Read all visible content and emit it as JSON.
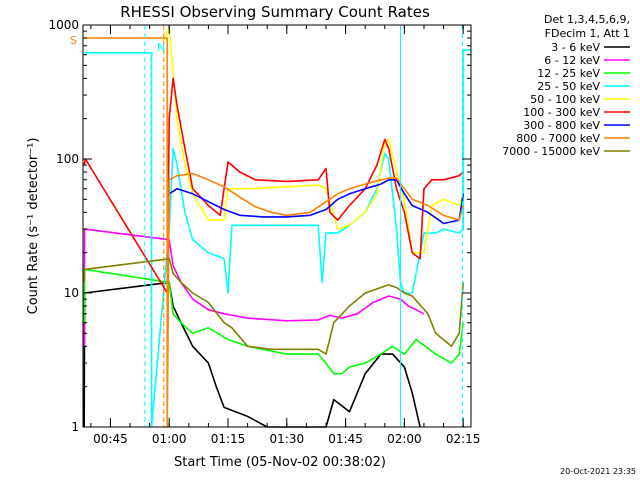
{
  "chart_data": {
    "type": "line",
    "title": "RHESSI Observing Summary Count Rates",
    "xlabel": "Start Time (05-Nov-02 00:38:02)",
    "ylabel": "Count Rate (s⁻¹ detector⁻¹)",
    "y_scale": "log",
    "ylim": [
      1,
      1000
    ],
    "xlim_minutes_after_00:00": [
      38.0,
      137.0
    ],
    "x_ticks": [
      {
        "t": 45,
        "label": "00:45"
      },
      {
        "t": 60,
        "label": "01:00"
      },
      {
        "t": 75,
        "label": "01:15"
      },
      {
        "t": 90,
        "label": "01:30"
      },
      {
        "t": 105,
        "label": "01:45"
      },
      {
        "t": 120,
        "label": "02:00"
      },
      {
        "t": 135,
        "label": "02:15"
      }
    ],
    "y_ticks": [
      {
        "v": 1,
        "label": "1"
      },
      {
        "v": 10,
        "label": "10"
      },
      {
        "v": 100,
        "label": "100"
      },
      {
        "v": 1000,
        "label": "1000"
      }
    ],
    "legend_header": [
      "Det 1,3,4,5,6,9,",
      "FDecim 1, Att 1"
    ],
    "legend_position": "right",
    "series": [
      {
        "name": "3 - 6 keV",
        "color": "#000000",
        "points": [
          [
            38.3,
            1
          ],
          [
            38.4,
            10
          ],
          [
            60,
            12
          ],
          [
            61,
            8
          ],
          [
            63,
            6
          ],
          [
            66,
            4
          ],
          [
            70,
            3
          ],
          [
            72,
            2
          ],
          [
            74,
            1.4
          ],
          [
            80,
            1.2
          ],
          [
            85,
            1
          ],
          [
            100,
            1
          ],
          [
            102,
            1.6
          ],
          [
            106,
            1.3
          ],
          [
            110,
            2.5
          ],
          [
            114,
            3.5
          ],
          [
            117,
            3.5
          ],
          [
            120,
            2.8
          ],
          [
            122,
            1.8
          ],
          [
            124,
            1
          ]
        ]
      },
      {
        "name": "6 - 12 keV",
        "color": "#ff00ff",
        "points": [
          [
            38.3,
            4
          ],
          [
            38.4,
            30
          ],
          [
            60,
            25
          ],
          [
            61,
            16
          ],
          [
            63,
            12
          ],
          [
            66,
            9
          ],
          [
            70,
            7.5
          ],
          [
            74,
            7
          ],
          [
            80,
            6.5
          ],
          [
            90,
            6.2
          ],
          [
            98,
            6.3
          ],
          [
            101,
            6.8
          ],
          [
            104,
            6.5
          ],
          [
            108,
            7
          ],
          [
            112,
            8.5
          ],
          [
            116,
            9.5
          ],
          [
            119,
            9
          ],
          [
            121,
            8
          ],
          [
            123,
            7.5
          ],
          [
            125,
            7
          ]
        ]
      },
      {
        "name": "12 - 25 keV",
        "color": "#00ff00",
        "points": [
          [
            38.3,
            6
          ],
          [
            38.4,
            15
          ],
          [
            60,
            12
          ],
          [
            61,
            7
          ],
          [
            63,
            6
          ],
          [
            66,
            5
          ],
          [
            70,
            5.5
          ],
          [
            75,
            4.5
          ],
          [
            80,
            4
          ],
          [
            90,
            3.5
          ],
          [
            98,
            3.5
          ],
          [
            100,
            3
          ],
          [
            102,
            2.5
          ],
          [
            104,
            2.5
          ],
          [
            106,
            2.8
          ],
          [
            110,
            3
          ],
          [
            114,
            3.5
          ],
          [
            117,
            4
          ],
          [
            120,
            3.5
          ],
          [
            123,
            4.5
          ],
          [
            128,
            3.5
          ],
          [
            132,
            3
          ],
          [
            134,
            3.5
          ],
          [
            135,
            6
          ]
        ]
      },
      {
        "name": "25 - 50 keV",
        "color": "#00ffff",
        "points": [
          [
            38.3,
            620
          ],
          [
            55.5,
            620
          ],
          [
            55.5,
            1
          ],
          [
            60,
            30
          ],
          [
            61,
            120
          ],
          [
            62,
            90
          ],
          [
            64,
            40
          ],
          [
            66,
            25
          ],
          [
            70,
            20
          ],
          [
            72,
            19
          ],
          [
            74,
            18
          ],
          [
            75,
            10
          ],
          [
            76,
            32
          ],
          [
            80,
            32
          ],
          [
            90,
            32
          ],
          [
            98,
            32
          ],
          [
            99,
            12
          ],
          [
            100,
            28
          ],
          [
            103,
            28
          ],
          [
            106,
            32
          ],
          [
            110,
            40
          ],
          [
            113,
            60
          ],
          [
            115,
            110
          ],
          [
            116,
            100
          ],
          [
            118,
            30
          ],
          [
            119,
            12
          ],
          [
            120,
            10
          ],
          [
            122,
            10
          ],
          [
            125,
            28
          ],
          [
            128,
            28
          ],
          [
            130,
            30
          ],
          [
            134,
            28
          ],
          [
            135,
            30
          ],
          [
            135,
            650
          ],
          [
            137,
            650
          ]
        ]
      },
      {
        "name": "50 - 100 keV",
        "color": "#ffff00",
        "points": [
          [
            58.5,
            750
          ],
          [
            60,
            950
          ],
          [
            62,
            200
          ],
          [
            64,
            90
          ],
          [
            66,
            55
          ],
          [
            70,
            35
          ],
          [
            74,
            35
          ],
          [
            75,
            60
          ],
          [
            80,
            60
          ],
          [
            90,
            62
          ],
          [
            98,
            64
          ],
          [
            100,
            60
          ],
          [
            103,
            30
          ],
          [
            106,
            32
          ],
          [
            110,
            40
          ],
          [
            113,
            55
          ],
          [
            115,
            130
          ],
          [
            116,
            140
          ],
          [
            118,
            80
          ],
          [
            120,
            50
          ],
          [
            122,
            20
          ],
          [
            125,
            20
          ],
          [
            127,
            45
          ],
          [
            130,
            50
          ],
          [
            134,
            45
          ],
          [
            135,
            55
          ]
        ]
      },
      {
        "name": "100 - 300 keV",
        "color": "#ff0000",
        "points": [
          [
            38.3,
            90
          ],
          [
            38.6,
            100
          ],
          [
            59.5,
            10
          ],
          [
            60,
            200
          ],
          [
            61,
            400
          ],
          [
            62,
            250
          ],
          [
            64,
            120
          ],
          [
            66,
            60
          ],
          [
            70,
            45
          ],
          [
            73,
            38
          ],
          [
            75,
            95
          ],
          [
            78,
            80
          ],
          [
            82,
            70
          ],
          [
            90,
            68
          ],
          [
            98,
            70
          ],
          [
            100,
            85
          ],
          [
            101,
            40
          ],
          [
            103,
            35
          ],
          [
            106,
            45
          ],
          [
            110,
            60
          ],
          [
            113,
            90
          ],
          [
            115,
            140
          ],
          [
            116,
            120
          ],
          [
            118,
            60
          ],
          [
            120,
            40
          ],
          [
            122,
            20
          ],
          [
            124,
            18
          ],
          [
            125,
            60
          ],
          [
            127,
            70
          ],
          [
            130,
            70
          ],
          [
            134,
            75
          ],
          [
            135,
            80
          ]
        ]
      },
      {
        "name": "300 - 800 keV",
        "color": "#0000ff",
        "points": [
          [
            60,
            55
          ],
          [
            62,
            60
          ],
          [
            66,
            55
          ],
          [
            70,
            48
          ],
          [
            74,
            42
          ],
          [
            78,
            38
          ],
          [
            84,
            37
          ],
          [
            90,
            37
          ],
          [
            96,
            38
          ],
          [
            100,
            42
          ],
          [
            103,
            50
          ],
          [
            106,
            55
          ],
          [
            110,
            60
          ],
          [
            114,
            65
          ],
          [
            116,
            70
          ],
          [
            118,
            70
          ],
          [
            120,
            55
          ],
          [
            122,
            45
          ],
          [
            126,
            40
          ],
          [
            130,
            33
          ],
          [
            134,
            35
          ],
          [
            135,
            55
          ]
        ]
      },
      {
        "name": "800 - 7000 keV",
        "color": "#ff8000",
        "points": [
          [
            38.3,
            800
          ],
          [
            59.5,
            800
          ],
          [
            59.5,
            1
          ],
          [
            60,
            70
          ],
          [
            62,
            75
          ],
          [
            66,
            78
          ],
          [
            70,
            70
          ],
          [
            74,
            62
          ],
          [
            78,
            52
          ],
          [
            82,
            44
          ],
          [
            86,
            40
          ],
          [
            90,
            38
          ],
          [
            96,
            40
          ],
          [
            100,
            48
          ],
          [
            103,
            55
          ],
          [
            106,
            60
          ],
          [
            110,
            65
          ],
          [
            114,
            70
          ],
          [
            116,
            72
          ],
          [
            118,
            72
          ],
          [
            120,
            60
          ],
          [
            122,
            50
          ],
          [
            126,
            45
          ],
          [
            130,
            38
          ],
          [
            134,
            35
          ],
          [
            135,
            45
          ]
        ]
      },
      {
        "name": "7000 - 15000 keV",
        "color": "#808000",
        "points": [
          [
            38.3,
            12
          ],
          [
            38.4,
            15
          ],
          [
            60,
            18
          ],
          [
            61,
            14
          ],
          [
            63,
            12
          ],
          [
            66,
            10
          ],
          [
            70,
            8.5
          ],
          [
            74,
            6
          ],
          [
            76,
            5.5
          ],
          [
            80,
            4
          ],
          [
            86,
            3.8
          ],
          [
            94,
            3.8
          ],
          [
            98,
            3.8
          ],
          [
            100,
            3.5
          ],
          [
            102,
            6
          ],
          [
            106,
            8
          ],
          [
            110,
            10
          ],
          [
            114,
            11
          ],
          [
            116,
            11.5
          ],
          [
            118,
            11
          ],
          [
            120,
            10
          ],
          [
            122,
            9.5
          ],
          [
            126,
            7
          ],
          [
            128,
            5
          ],
          [
            132,
            4
          ],
          [
            134,
            5
          ],
          [
            135,
            12
          ]
        ]
      }
    ],
    "vertical_lines": [
      {
        "t": 53.8,
        "color": "#00ffff",
        "style": "dashed"
      },
      {
        "t": 58.6,
        "color": "#ff8000",
        "style": "dashed"
      },
      {
        "t": 119.0,
        "color": "#00ffff",
        "style": "solid"
      },
      {
        "t": 134.8,
        "color": "#00ffff",
        "style": "dashed"
      }
    ],
    "flag_annotations": [
      {
        "label": "S",
        "color": "#ff8000"
      },
      {
        "label": "N",
        "color": "#00ffff"
      }
    ],
    "timestamp": "20-Oct-2021 23:35"
  }
}
